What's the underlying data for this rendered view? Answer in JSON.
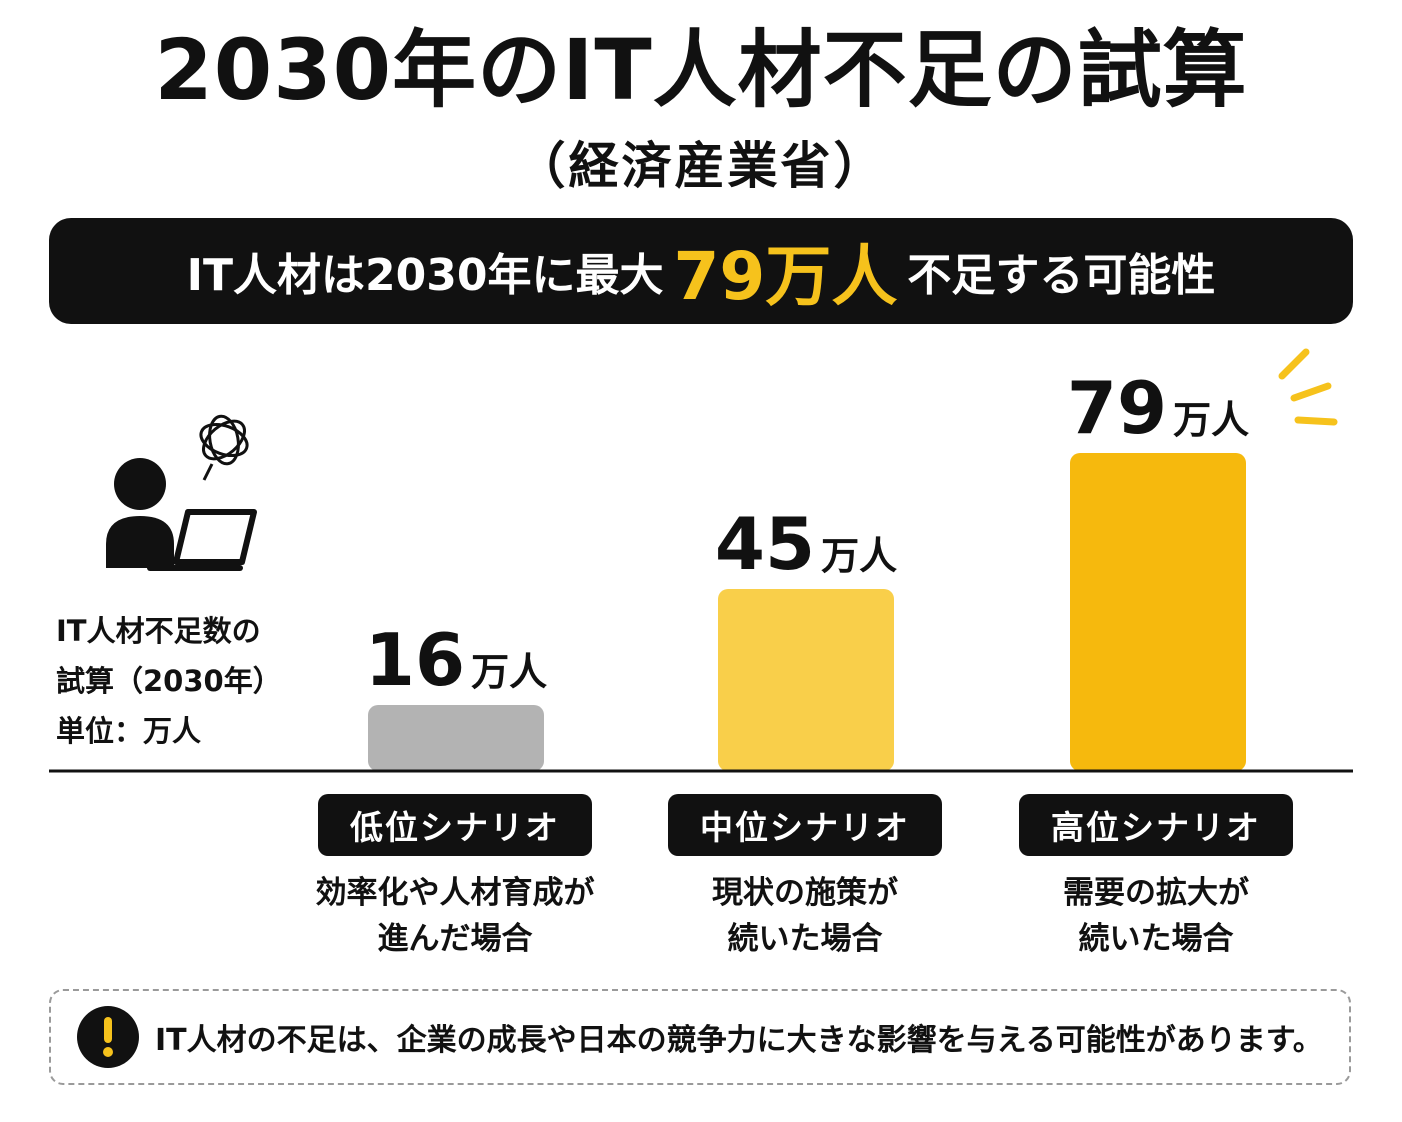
{
  "title": "2030年のIT人材不足の試算",
  "subtitle": "（経済産業省）",
  "banner": {
    "text_before": "IT人材は2030年に最大",
    "highlight": "79万人",
    "text_after": "不足する可能性"
  },
  "side_label": {
    "line1": "IT人材不足数の",
    "line2": "試算（2030年）",
    "line3": "単位：万人"
  },
  "chart_data": {
    "type": "bar",
    "categories": [
      "低位シナリオ",
      "中位シナリオ",
      "高位シナリオ"
    ],
    "values": [
      16,
      45,
      79
    ],
    "unit": "万人",
    "descriptions": [
      [
        "効率化や人材育成が",
        "進んだ場合"
      ],
      [
        "現状の施策が",
        "続いた場合"
      ],
      [
        "需要の拡大が",
        "続いた場合"
      ]
    ],
    "colors": [
      "#b3b3b3",
      "#f9cf4a",
      "#f6b90d"
    ],
    "grid": false,
    "legend": "none"
  },
  "note": {
    "icon": "exclamation-icon",
    "text": "IT人材の不足は、企業の成長や日本の競争力に大きな影響を与える可能性があります。"
  },
  "colors": {
    "accent": "#f6c21c",
    "dark": "#111111"
  }
}
